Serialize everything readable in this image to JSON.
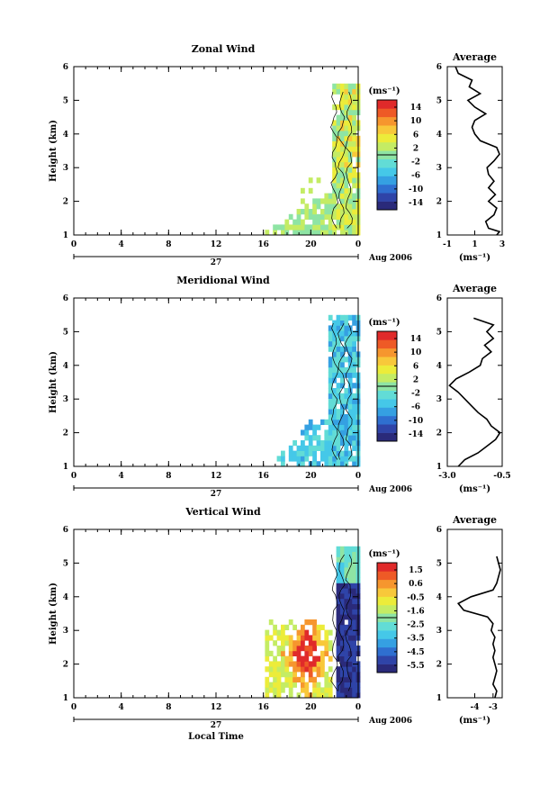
{
  "figure": {
    "xlabel": "Local Time",
    "date_label": "Aug 2006",
    "day_label": "27",
    "colorbar_unit": "(ms⁻¹)",
    "avg_unit": "(ms⁻¹)",
    "avg_title": "Average"
  },
  "palette": [
    "#2a2a7a",
    "#2f44a8",
    "#2f6fd0",
    "#35a0e2",
    "#45c8e8",
    "#62dcd6",
    "#8ee4a4",
    "#c4ec64",
    "#ecec3a",
    "#f8c83a",
    "#f6962e",
    "#ee5a26",
    "#e02a2a"
  ],
  "chart_data": [
    {
      "type": "heatmap",
      "title": "Zonal Wind",
      "ylabel": "Height (km)",
      "xlim": [
        0,
        24
      ],
      "ylim": [
        1,
        6
      ],
      "x_ticks": [
        "0",
        "4",
        "8",
        "12",
        "16",
        "20",
        "0"
      ],
      "y_ticks": [
        "1",
        "2",
        "3",
        "4",
        "5",
        "6"
      ],
      "colorbar": {
        "ticks": [
          "14",
          "10",
          "6",
          "2",
          "-2",
          "-6",
          "-10",
          "-14"
        ],
        "vmin": -16,
        "vmax": 16
      },
      "average": {
        "xlim": [
          -1,
          3
        ],
        "x_ticks": [
          "-1",
          "1",
          "3"
        ],
        "y_ticks": [
          "1",
          "2",
          "3",
          "4",
          "5",
          "6"
        ],
        "height": [
          1.0,
          1.1,
          1.2,
          1.4,
          1.6,
          1.8,
          2.0,
          2.2,
          2.4,
          2.6,
          2.8,
          3.0,
          3.2,
          3.4,
          3.6,
          3.8,
          4.0,
          4.2,
          4.4,
          4.6,
          4.8,
          5.0,
          5.2,
          5.4,
          5.6,
          5.8,
          6.0
        ],
        "value": [
          2.6,
          2.8,
          2.0,
          1.8,
          2.4,
          2.6,
          2.0,
          2.5,
          2.0,
          2.4,
          2.0,
          1.9,
          2.4,
          2.8,
          2.6,
          1.4,
          1.0,
          0.8,
          1.0,
          1.8,
          1.0,
          0.5,
          1.4,
          0.6,
          0.8,
          -0.2,
          -0.4
        ]
      }
    },
    {
      "type": "heatmap",
      "title": "Meridional Wind",
      "ylabel": "Height (km)",
      "xlim": [
        0,
        24
      ],
      "ylim": [
        1,
        6
      ],
      "x_ticks": [
        "0",
        "4",
        "8",
        "12",
        "16",
        "20",
        "0"
      ],
      "y_ticks": [
        "1",
        "2",
        "3",
        "4",
        "5",
        "6"
      ],
      "colorbar": {
        "ticks": [
          "14",
          "10",
          "6",
          "2",
          "-2",
          "-6",
          "-10",
          "-14"
        ],
        "vmin": -16,
        "vmax": 16
      },
      "average": {
        "xlim": [
          -3.0,
          -0.5
        ],
        "x_ticks": [
          "-3.0",
          "-0.5"
        ],
        "y_ticks": [
          "1",
          "2",
          "3",
          "4",
          "5",
          "6"
        ],
        "height": [
          1.0,
          1.2,
          1.4,
          1.6,
          1.8,
          2.0,
          2.2,
          2.4,
          2.6,
          2.8,
          3.0,
          3.2,
          3.4,
          3.6,
          3.8,
          4.0,
          4.2,
          4.4,
          4.6,
          4.8,
          5.0,
          5.2,
          5.4
        ],
        "value": [
          -2.5,
          -2.2,
          -1.6,
          -1.2,
          -0.8,
          -0.6,
          -1.0,
          -1.2,
          -1.6,
          -1.9,
          -2.2,
          -2.5,
          -2.9,
          -2.6,
          -2.0,
          -1.5,
          -1.4,
          -1.0,
          -1.3,
          -0.9,
          -1.2,
          -0.9,
          -1.8
        ]
      }
    },
    {
      "type": "heatmap",
      "title": "Vertical Wind",
      "ylabel": "Height (km)",
      "xlabel": "Local Time",
      "xlim": [
        0,
        24
      ],
      "ylim": [
        1,
        6
      ],
      "x_ticks": [
        "0",
        "4",
        "8",
        "12",
        "16",
        "20",
        "0"
      ],
      "y_ticks": [
        "1",
        "2",
        "3",
        "4",
        "5",
        "6"
      ],
      "colorbar": {
        "ticks": [
          "1.5",
          "0.6",
          "-0.5",
          "-1.6",
          "-2.5",
          "-3.5",
          "-4.5",
          "-5.5"
        ],
        "vmin": -6.0,
        "vmax": 2.0
      },
      "average": {
        "xlim": [
          -5.5,
          -2.5
        ],
        "x_ticks": [
          "-4",
          "-3"
        ],
        "y_ticks": [
          "1",
          "2",
          "3",
          "4",
          "5",
          "6"
        ],
        "height": [
          1.0,
          1.2,
          1.4,
          1.6,
          1.8,
          2.0,
          2.2,
          2.4,
          2.6,
          2.8,
          3.0,
          3.2,
          3.4,
          3.6,
          3.8,
          4.0,
          4.2,
          4.4,
          4.6,
          4.8,
          5.0,
          5.2
        ],
        "value": [
          -2.9,
          -2.8,
          -3.0,
          -2.9,
          -2.8,
          -2.9,
          -3.0,
          -2.9,
          -3.0,
          -2.9,
          -3.1,
          -3.0,
          -3.3,
          -4.6,
          -4.9,
          -4.2,
          -3.0,
          -2.8,
          -2.7,
          -2.6,
          -2.7,
          -2.8
        ]
      }
    }
  ]
}
